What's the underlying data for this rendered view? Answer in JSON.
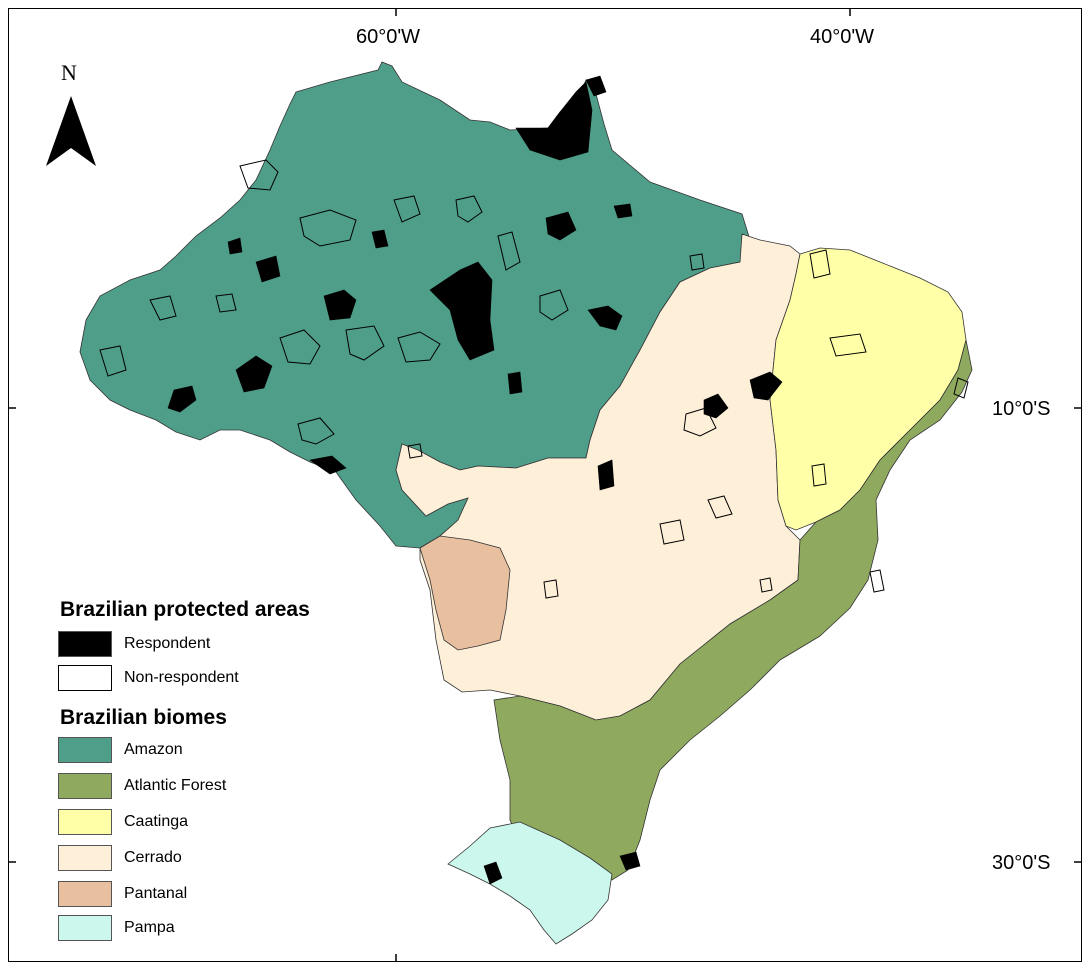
{
  "coordinates": {
    "lon_left": "60°0'W",
    "lon_right": "40°0'W",
    "lat_top": "10°0'S",
    "lat_bottom": "30°0'S"
  },
  "north_arrow": {
    "label": "N",
    "icon": "north-arrow-icon"
  },
  "legend": {
    "protected_title": "Brazilian protected areas",
    "protected_items": [
      {
        "label": "Respondent",
        "color": "#000000"
      },
      {
        "label": "Non-respondent",
        "color": "#ffffff"
      }
    ],
    "biomes_title": "Brazilian biomes",
    "biome_items": [
      {
        "label": "Amazon",
        "color": "#4f9e8a"
      },
      {
        "label": "Atlantic Forest",
        "color": "#8faa5f"
      },
      {
        "label": "Caatinga",
        "color": "#ffffa8"
      },
      {
        "label": "Cerrado",
        "color": "#feefd9"
      },
      {
        "label": "Pantanal",
        "color": "#e8bf9f"
      },
      {
        "label": "Pampa",
        "color": "#ccf7ec"
      }
    ]
  }
}
